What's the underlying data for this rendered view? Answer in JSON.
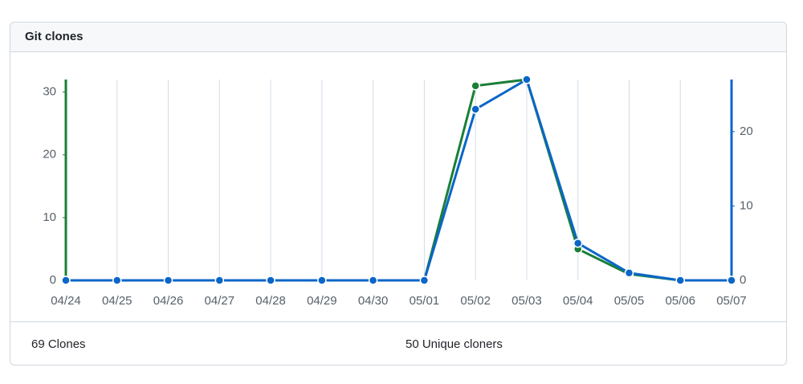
{
  "header": {
    "title": "Git clones"
  },
  "chart_data": {
    "type": "line",
    "categories": [
      "04/24",
      "04/25",
      "04/26",
      "04/27",
      "04/28",
      "04/29",
      "04/30",
      "05/01",
      "05/02",
      "05/03",
      "05/04",
      "05/05",
      "05/06",
      "05/07"
    ],
    "series": [
      {
        "name": "Clones",
        "color": "#1a7f37",
        "values": [
          0,
          0,
          0,
          0,
          0,
          0,
          0,
          0,
          31,
          32,
          5,
          1,
          0,
          0
        ]
      },
      {
        "name": "Unique cloners",
        "color": "#0a66c8",
        "axis": "y2",
        "values": [
          0,
          0,
          0,
          0,
          0,
          0,
          0,
          0,
          23,
          27,
          5,
          1,
          0,
          0
        ]
      }
    ],
    "ylim": [
      0,
      32
    ],
    "yticks": [
      0,
      10,
      20,
      30
    ],
    "y2lim": [
      0,
      27
    ],
    "y2ticks": [
      0,
      10,
      20
    ],
    "grid": true
  },
  "footer": {
    "items": [
      "69 Clones",
      "50 Unique cloners"
    ]
  }
}
